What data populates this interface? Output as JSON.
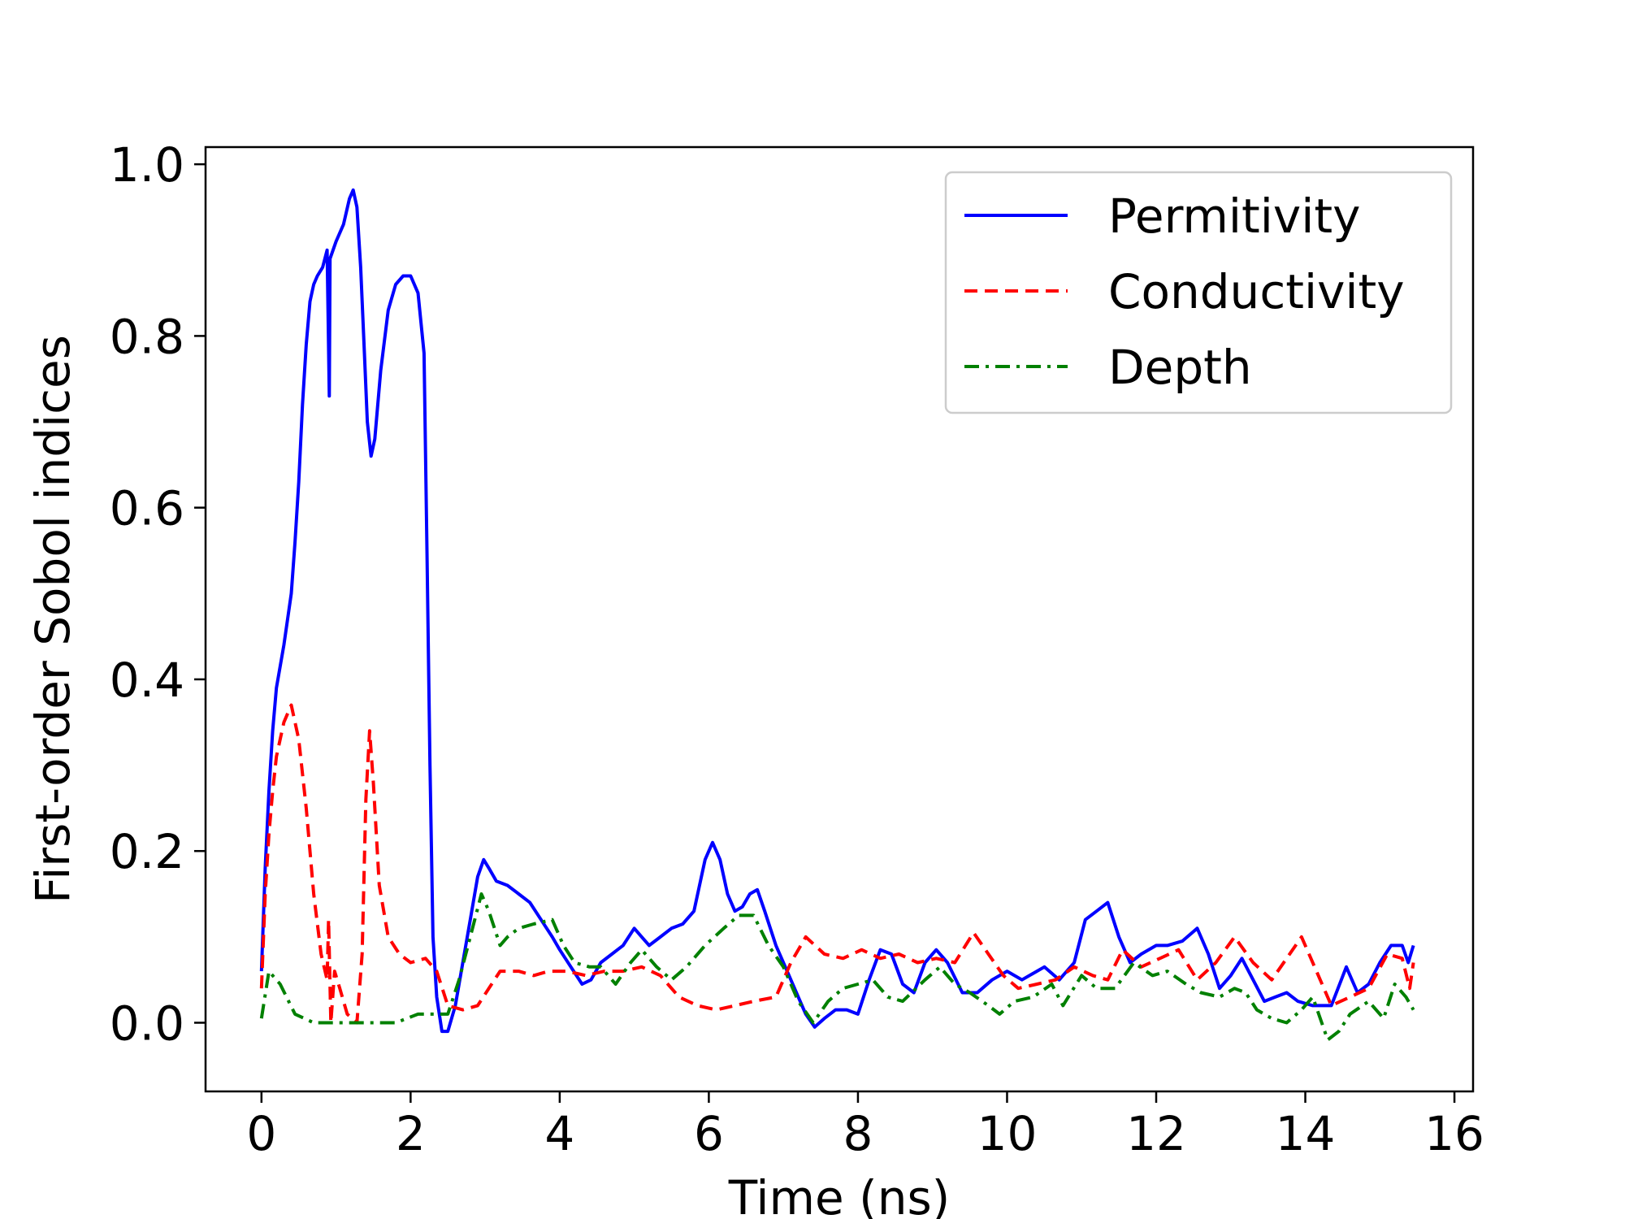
{
  "chart_data": {
    "type": "line",
    "title": "",
    "xlabel": "Time (ns)",
    "ylabel": "First-order Sobol indices",
    "xlim": [
      -0.75,
      16.25
    ],
    "ylim": [
      -0.08,
      1.02
    ],
    "xticks": [
      0,
      2,
      4,
      6,
      8,
      10,
      12,
      14,
      16
    ],
    "yticks": [
      0.0,
      0.2,
      0.4,
      0.6,
      0.8,
      1.0
    ],
    "xtick_labels": [
      "0",
      "2",
      "4",
      "6",
      "8",
      "10",
      "12",
      "14",
      "16"
    ],
    "ytick_labels": [
      "0.0",
      "0.2",
      "0.4",
      "0.6",
      "0.8",
      "1.0"
    ],
    "grid": false,
    "legend_position": "top-right",
    "series": [
      {
        "name": "Permitivity",
        "color": "#0000ff",
        "style": "solid",
        "points": [
          [
            0,
            0.06
          ],
          [
            0.05,
            0.18
          ],
          [
            0.1,
            0.27
          ],
          [
            0.15,
            0.34
          ],
          [
            0.2,
            0.39
          ],
          [
            0.3,
            0.44
          ],
          [
            0.4,
            0.5
          ],
          [
            0.45,
            0.56
          ],
          [
            0.5,
            0.63
          ],
          [
            0.55,
            0.72
          ],
          [
            0.6,
            0.79
          ],
          [
            0.65,
            0.84
          ],
          [
            0.7,
            0.86
          ],
          [
            0.75,
            0.87
          ],
          [
            0.82,
            0.88
          ],
          [
            0.88,
            0.9
          ],
          [
            0.91,
            0.73
          ],
          [
            0.92,
            0.89
          ],
          [
            1.0,
            0.91
          ],
          [
            1.1,
            0.93
          ],
          [
            1.18,
            0.96
          ],
          [
            1.23,
            0.97
          ],
          [
            1.28,
            0.95
          ],
          [
            1.33,
            0.88
          ],
          [
            1.38,
            0.78
          ],
          [
            1.42,
            0.7
          ],
          [
            1.47,
            0.66
          ],
          [
            1.52,
            0.68
          ],
          [
            1.6,
            0.76
          ],
          [
            1.7,
            0.83
          ],
          [
            1.8,
            0.86
          ],
          [
            1.9,
            0.87
          ],
          [
            2.0,
            0.87
          ],
          [
            2.1,
            0.85
          ],
          [
            2.18,
            0.78
          ],
          [
            2.22,
            0.55
          ],
          [
            2.26,
            0.3
          ],
          [
            2.3,
            0.1
          ],
          [
            2.35,
            0.03
          ],
          [
            2.42,
            -0.01
          ],
          [
            2.5,
            -0.01
          ],
          [
            2.6,
            0.02
          ],
          [
            2.7,
            0.07
          ],
          [
            2.8,
            0.12
          ],
          [
            2.9,
            0.17
          ],
          [
            2.98,
            0.19
          ],
          [
            3.05,
            0.18
          ],
          [
            3.15,
            0.165
          ],
          [
            3.3,
            0.16
          ],
          [
            3.45,
            0.15
          ],
          [
            3.6,
            0.14
          ],
          [
            3.75,
            0.12
          ],
          [
            3.9,
            0.1
          ],
          [
            4.0,
            0.085
          ],
          [
            4.15,
            0.065
          ],
          [
            4.3,
            0.045
          ],
          [
            4.42,
            0.05
          ],
          [
            4.55,
            0.07
          ],
          [
            4.7,
            0.08
          ],
          [
            4.85,
            0.09
          ],
          [
            5.0,
            0.11
          ],
          [
            5.1,
            0.1
          ],
          [
            5.2,
            0.09
          ],
          [
            5.35,
            0.1
          ],
          [
            5.5,
            0.11
          ],
          [
            5.65,
            0.115
          ],
          [
            5.8,
            0.13
          ],
          [
            5.95,
            0.19
          ],
          [
            6.05,
            0.21
          ],
          [
            6.15,
            0.19
          ],
          [
            6.25,
            0.15
          ],
          [
            6.35,
            0.13
          ],
          [
            6.45,
            0.135
          ],
          [
            6.55,
            0.15
          ],
          [
            6.65,
            0.155
          ],
          [
            6.75,
            0.13
          ],
          [
            6.9,
            0.09
          ],
          [
            7.05,
            0.06
          ],
          [
            7.2,
            0.03
          ],
          [
            7.3,
            0.01
          ],
          [
            7.42,
            -0.005
          ],
          [
            7.55,
            0.005
          ],
          [
            7.7,
            0.015
          ],
          [
            7.85,
            0.015
          ],
          [
            8.0,
            0.01
          ],
          [
            8.15,
            0.05
          ],
          [
            8.3,
            0.085
          ],
          [
            8.45,
            0.08
          ],
          [
            8.6,
            0.045
          ],
          [
            8.75,
            0.035
          ],
          [
            8.9,
            0.07
          ],
          [
            9.05,
            0.085
          ],
          [
            9.2,
            0.07
          ],
          [
            9.4,
            0.035
          ],
          [
            9.6,
            0.035
          ],
          [
            9.8,
            0.05
          ],
          [
            10.0,
            0.06
          ],
          [
            10.2,
            0.05
          ],
          [
            10.4,
            0.06
          ],
          [
            10.5,
            0.065
          ],
          [
            10.7,
            0.05
          ],
          [
            10.9,
            0.07
          ],
          [
            11.05,
            0.12
          ],
          [
            11.2,
            0.13
          ],
          [
            11.35,
            0.14
          ],
          [
            11.5,
            0.1
          ],
          [
            11.65,
            0.07
          ],
          [
            11.8,
            0.08
          ],
          [
            12.0,
            0.09
          ],
          [
            12.15,
            0.09
          ],
          [
            12.35,
            0.095
          ],
          [
            12.55,
            0.11
          ],
          [
            12.7,
            0.08
          ],
          [
            12.85,
            0.04
          ],
          [
            13.0,
            0.055
          ],
          [
            13.15,
            0.075
          ],
          [
            13.3,
            0.05
          ],
          [
            13.45,
            0.025
          ],
          [
            13.6,
            0.03
          ],
          [
            13.75,
            0.035
          ],
          [
            13.9,
            0.025
          ],
          [
            14.1,
            0.02
          ],
          [
            14.35,
            0.02
          ],
          [
            14.55,
            0.065
          ],
          [
            14.7,
            0.035
          ],
          [
            14.85,
            0.045
          ],
          [
            15.0,
            0.07
          ],
          [
            15.15,
            0.09
          ],
          [
            15.3,
            0.09
          ],
          [
            15.38,
            0.07
          ],
          [
            15.45,
            0.09
          ]
        ]
      },
      {
        "name": "Conductivity",
        "color": "#ff0000",
        "style": "dashed",
        "points": [
          [
            0,
            0.04
          ],
          [
            0.05,
            0.15
          ],
          [
            0.1,
            0.22
          ],
          [
            0.15,
            0.27
          ],
          [
            0.2,
            0.31
          ],
          [
            0.3,
            0.35
          ],
          [
            0.4,
            0.37
          ],
          [
            0.5,
            0.33
          ],
          [
            0.6,
            0.25
          ],
          [
            0.7,
            0.15
          ],
          [
            0.8,
            0.08
          ],
          [
            0.88,
            0.05
          ],
          [
            0.9,
            0.12
          ],
          [
            0.93,
            0.0
          ],
          [
            0.98,
            0.06
          ],
          [
            1.05,
            0.04
          ],
          [
            1.15,
            0.01
          ],
          [
            1.28,
            0.0
          ],
          [
            1.35,
            0.08
          ],
          [
            1.4,
            0.26
          ],
          [
            1.45,
            0.34
          ],
          [
            1.5,
            0.28
          ],
          [
            1.58,
            0.16
          ],
          [
            1.7,
            0.1
          ],
          [
            1.85,
            0.08
          ],
          [
            2.0,
            0.07
          ],
          [
            2.2,
            0.075
          ],
          [
            2.35,
            0.06
          ],
          [
            2.5,
            0.02
          ],
          [
            2.7,
            0.015
          ],
          [
            2.9,
            0.02
          ],
          [
            3.05,
            0.04
          ],
          [
            3.2,
            0.06
          ],
          [
            3.45,
            0.06
          ],
          [
            3.65,
            0.055
          ],
          [
            3.85,
            0.06
          ],
          [
            4.1,
            0.06
          ],
          [
            4.35,
            0.055
          ],
          [
            4.6,
            0.06
          ],
          [
            4.85,
            0.06
          ],
          [
            5.1,
            0.065
          ],
          [
            5.35,
            0.055
          ],
          [
            5.6,
            0.03
          ],
          [
            5.85,
            0.02
          ],
          [
            6.1,
            0.015
          ],
          [
            6.35,
            0.02
          ],
          [
            6.6,
            0.025
          ],
          [
            6.9,
            0.03
          ],
          [
            7.1,
            0.07
          ],
          [
            7.3,
            0.1
          ],
          [
            7.55,
            0.08
          ],
          [
            7.8,
            0.075
          ],
          [
            8.05,
            0.085
          ],
          [
            8.3,
            0.075
          ],
          [
            8.55,
            0.08
          ],
          [
            8.8,
            0.07
          ],
          [
            9.05,
            0.075
          ],
          [
            9.3,
            0.07
          ],
          [
            9.55,
            0.105
          ],
          [
            9.75,
            0.08
          ],
          [
            9.95,
            0.055
          ],
          [
            10.15,
            0.04
          ],
          [
            10.4,
            0.045
          ],
          [
            10.65,
            0.05
          ],
          [
            10.9,
            0.065
          ],
          [
            11.15,
            0.055
          ],
          [
            11.35,
            0.05
          ],
          [
            11.55,
            0.085
          ],
          [
            11.8,
            0.065
          ],
          [
            12.05,
            0.075
          ],
          [
            12.3,
            0.085
          ],
          [
            12.55,
            0.05
          ],
          [
            12.8,
            0.07
          ],
          [
            13.05,
            0.1
          ],
          [
            13.3,
            0.07
          ],
          [
            13.55,
            0.05
          ],
          [
            13.75,
            0.075
          ],
          [
            13.95,
            0.1
          ],
          [
            14.15,
            0.06
          ],
          [
            14.35,
            0.02
          ],
          [
            14.6,
            0.03
          ],
          [
            14.85,
            0.04
          ],
          [
            15.1,
            0.08
          ],
          [
            15.3,
            0.075
          ],
          [
            15.4,
            0.04
          ],
          [
            15.45,
            0.07
          ]
        ]
      },
      {
        "name": "Depth",
        "color": "#008000",
        "style": "dashdot",
        "points": [
          [
            0,
            0.005
          ],
          [
            0.1,
            0.06
          ],
          [
            0.25,
            0.045
          ],
          [
            0.45,
            0.01
          ],
          [
            0.7,
            0.0
          ],
          [
            1.0,
            0.0
          ],
          [
            1.4,
            0.0
          ],
          [
            1.8,
            0.0
          ],
          [
            2.1,
            0.01
          ],
          [
            2.3,
            0.01
          ],
          [
            2.5,
            0.01
          ],
          [
            2.65,
            0.05
          ],
          [
            2.8,
            0.1
          ],
          [
            2.95,
            0.15
          ],
          [
            3.05,
            0.13
          ],
          [
            3.2,
            0.09
          ],
          [
            3.3,
            0.1
          ],
          [
            3.45,
            0.11
          ],
          [
            3.65,
            0.115
          ],
          [
            3.9,
            0.12
          ],
          [
            4.05,
            0.09
          ],
          [
            4.2,
            0.07
          ],
          [
            4.4,
            0.065
          ],
          [
            4.55,
            0.065
          ],
          [
            4.75,
            0.045
          ],
          [
            4.95,
            0.07
          ],
          [
            5.1,
            0.085
          ],
          [
            5.3,
            0.065
          ],
          [
            5.5,
            0.05
          ],
          [
            5.7,
            0.065
          ],
          [
            5.95,
            0.09
          ],
          [
            6.2,
            0.11
          ],
          [
            6.4,
            0.125
          ],
          [
            6.6,
            0.125
          ],
          [
            6.8,
            0.09
          ],
          [
            7.0,
            0.065
          ],
          [
            7.2,
            0.025
          ],
          [
            7.4,
            0.0
          ],
          [
            7.6,
            0.025
          ],
          [
            7.8,
            0.04
          ],
          [
            8.0,
            0.045
          ],
          [
            8.2,
            0.05
          ],
          [
            8.4,
            0.03
          ],
          [
            8.6,
            0.025
          ],
          [
            8.9,
            0.05
          ],
          [
            9.1,
            0.065
          ],
          [
            9.3,
            0.045
          ],
          [
            9.5,
            0.035
          ],
          [
            9.75,
            0.02
          ],
          [
            9.9,
            0.01
          ],
          [
            10.1,
            0.025
          ],
          [
            10.35,
            0.03
          ],
          [
            10.6,
            0.045
          ],
          [
            10.75,
            0.02
          ],
          [
            11.0,
            0.055
          ],
          [
            11.2,
            0.04
          ],
          [
            11.45,
            0.04
          ],
          [
            11.7,
            0.07
          ],
          [
            11.95,
            0.055
          ],
          [
            12.15,
            0.06
          ],
          [
            12.4,
            0.045
          ],
          [
            12.6,
            0.035
          ],
          [
            12.85,
            0.03
          ],
          [
            13.05,
            0.04
          ],
          [
            13.2,
            0.035
          ],
          [
            13.35,
            0.015
          ],
          [
            13.55,
            0.005
          ],
          [
            13.75,
            0.0
          ],
          [
            13.95,
            0.015
          ],
          [
            14.1,
            0.03
          ],
          [
            14.3,
            -0.02
          ],
          [
            14.45,
            -0.01
          ],
          [
            14.6,
            0.01
          ],
          [
            14.85,
            0.025
          ],
          [
            15.05,
            0.005
          ],
          [
            15.2,
            0.045
          ],
          [
            15.35,
            0.03
          ],
          [
            15.45,
            0.015
          ]
        ]
      }
    ]
  }
}
